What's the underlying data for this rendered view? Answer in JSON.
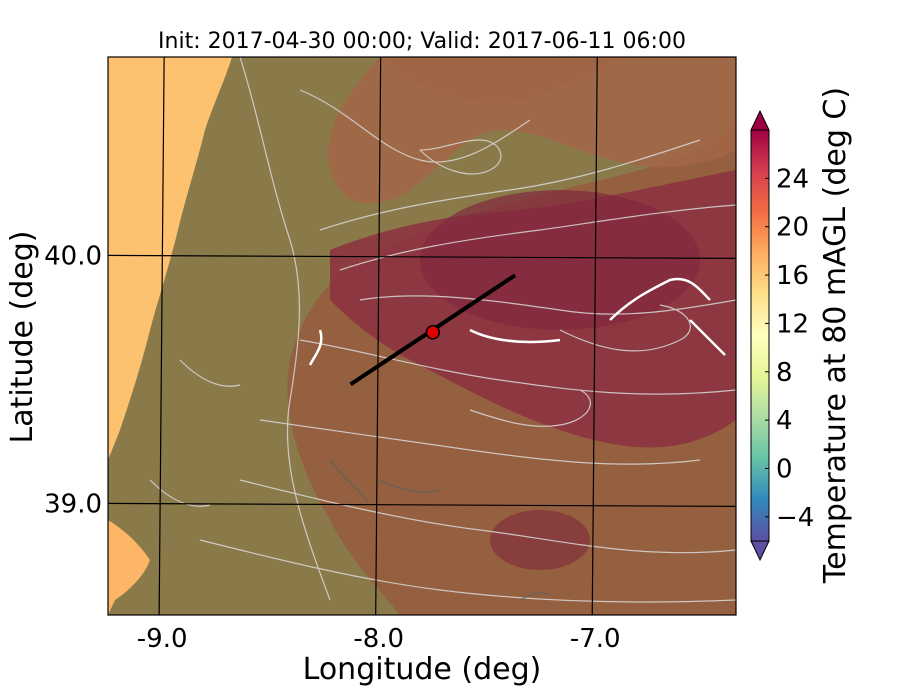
{
  "title": "Init: 2017-04-30 00:00; Valid: 2017-06-11 06:00",
  "xlabel": "Longitude (deg)",
  "ylabel": "Latitude (deg)",
  "colorbar_label": "Temperature at 80 mAGL (deg C)",
  "x_ticks": [
    "-9.0",
    "-8.0",
    "-7.0"
  ],
  "y_ticks": [
    "40.0",
    "39.0"
  ],
  "cb_ticks": [
    "24",
    "20",
    "16",
    "12",
    "8",
    "4",
    "0",
    "−4"
  ],
  "colors": {
    "ocean": "#FDC270",
    "land_low": "#8A7A4A",
    "land_mid": "#9A5A40",
    "land_hot": "#8C2E3A",
    "contour": "#D8D8D8",
    "marker": "#E00000"
  },
  "chart_data": {
    "type": "heatmap",
    "title": "Init: 2017-04-30 00:00; Valid: 2017-06-11 06:00",
    "xlabel": "Longitude (deg)",
    "ylabel": "Latitude (deg)",
    "xlim": [
      -9.25,
      -6.35
    ],
    "ylim": [
      38.55,
      40.8
    ],
    "x_ticks": [
      -9.0,
      -8.0,
      -7.0
    ],
    "y_ticks": [
      40.0,
      39.0
    ],
    "colorbar": {
      "label": "Temperature at 80 mAGL (deg C)",
      "range": [
        -6,
        28
      ],
      "ticks": [
        -4,
        0,
        4,
        8,
        12,
        16,
        20,
        24
      ],
      "colormap": "Spectral_r"
    },
    "grid": true,
    "cross_section_line": {
      "start": [
        -8.13,
        39.48
      ],
      "end": [
        -7.37,
        39.92
      ]
    },
    "marker": {
      "lon": -7.75,
      "lat": 39.69
    }
  }
}
